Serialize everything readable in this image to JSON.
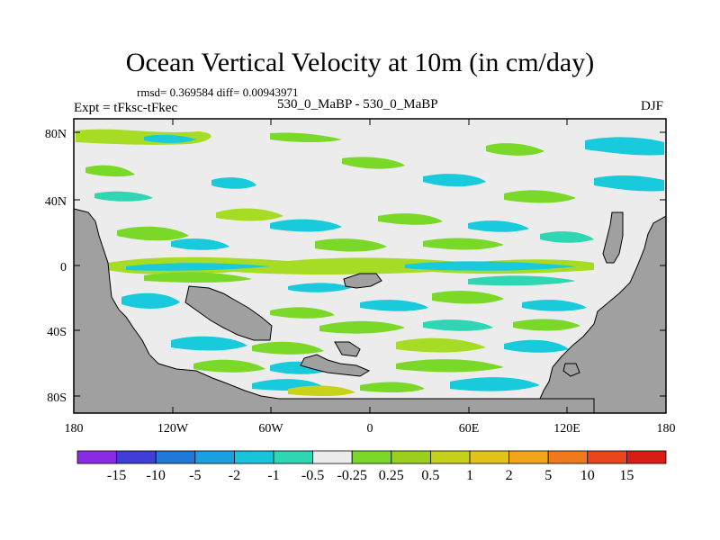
{
  "title": "Ocean Vertical Velocity at 10m (in cm/day)",
  "stats_line": "rmsd= 0.369584 diff= 0.00943971",
  "expt_label": "Expt = tFksc-tFkec",
  "comparison_label": "530_0_MaBP - 530_0_MaBP",
  "season_label": "DJF",
  "y_ticks": [
    "80N",
    "40N",
    "0",
    "40S",
    "80S"
  ],
  "x_ticks": [
    "180",
    "120W",
    "60W",
    "0",
    "60E",
    "120E",
    "180"
  ],
  "colorbar": {
    "labels": [
      "-15",
      "-10",
      "-5",
      "-2",
      "-1",
      "-0.5",
      "-0.25",
      "0.25",
      "0.5",
      "1",
      "2",
      "5",
      "10",
      "15"
    ],
    "colors": [
      "#8a2be2",
      "#3f3fd8",
      "#1f78d8",
      "#1aa0e0",
      "#19c3dc",
      "#2fd6b4",
      "#ececec",
      "#7ad829",
      "#9ccf1c",
      "#c5d11a",
      "#e3c21a",
      "#f2a41b",
      "#f07a1b",
      "#e8461b",
      "#d81e12"
    ]
  },
  "colors": {
    "land": "#a0a0a0",
    "neutral": "#ececec",
    "green": "#7ad829",
    "lightgreen": "#a6dc24",
    "cyan": "#19c9dc",
    "teal": "#2fd6b4",
    "yellowgreen": "#c9d21a"
  }
}
